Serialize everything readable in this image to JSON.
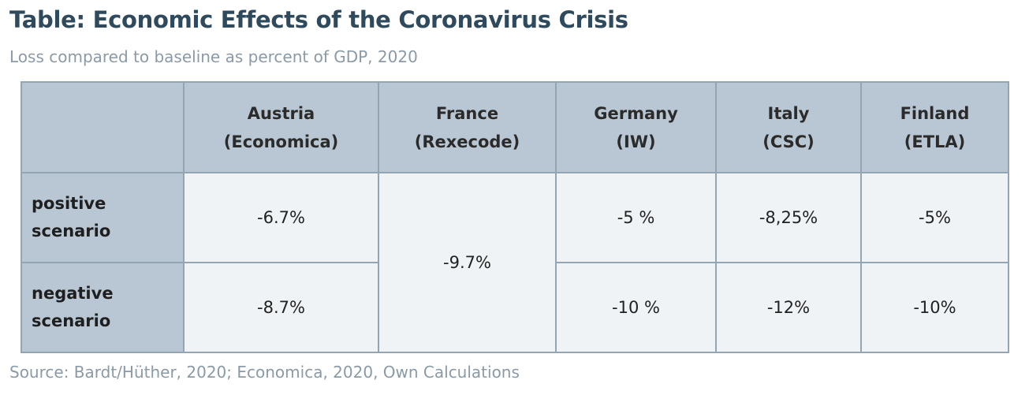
{
  "title": "Table: Economic Effects of the Coronavirus Crisis",
  "subtitle": "Loss compared to baseline as percent of GDP, 2020",
  "source": "Source: Bardt/Hüther, 2020; Economica, 2020, Own Calculations",
  "columns": [
    {
      "country": "Austria",
      "institute": "(Economica)"
    },
    {
      "country": "France",
      "institute": "(Rexecode)"
    },
    {
      "country": "Germany",
      "institute": "(IW)"
    },
    {
      "country": "Italy",
      "institute": "(CSC)"
    },
    {
      "country": "Finland",
      "institute": "(ETLA)"
    }
  ],
  "rows": [
    {
      "label_line1": "positive",
      "label_line2": "scenario"
    },
    {
      "label_line1": "negative",
      "label_line2": "scenario"
    }
  ],
  "cells": {
    "austria_positive": "-6.7%",
    "austria_negative": "-8.7%",
    "france_both": "-9.7%",
    "germany_positive": "-5 %",
    "germany_negative": "-10 %",
    "italy_positive": "-8,25%",
    "italy_negative": "-12%",
    "finland_positive": "-5%",
    "finland_negative": "-10%"
  },
  "chart_data": {
    "type": "table",
    "title": "Table: Economic Effects of the Coronavirus Crisis",
    "subtitle": "Loss compared to baseline as percent of GDP, 2020",
    "columns": [
      "Austria (Economica)",
      "France (Rexecode)",
      "Germany (IW)",
      "Italy (CSC)",
      "Finland (ETLA)"
    ],
    "rows": [
      "positive scenario",
      "negative scenario"
    ],
    "values": [
      [
        "-6.7%",
        "-9.7%",
        "-5 %",
        "-8,25%",
        "-5%"
      ],
      [
        "-8.7%",
        "-9.7%",
        "-10 %",
        "-12%",
        "-10%"
      ]
    ],
    "merged_cells": [
      {
        "column": "France (Rexecode)",
        "rows": [
          "positive scenario",
          "negative scenario"
        ],
        "value": "-9.7%"
      }
    ]
  }
}
